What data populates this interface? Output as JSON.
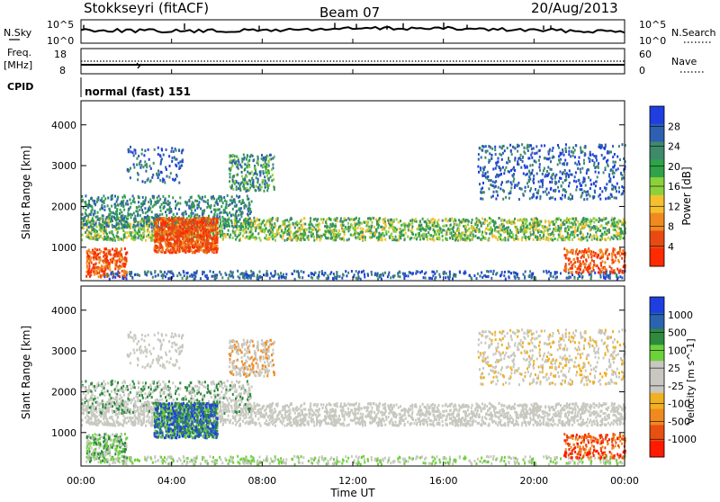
{
  "header": {
    "title": "Stokkseyri (fitACF)",
    "beam": "Beam 07",
    "date": "20/Aug/2013"
  },
  "noise_panel": {
    "left_label": "N.Sky",
    "right_label": "N.Search",
    "left_ticks": [
      "10^5",
      "10^0"
    ],
    "right_ticks": [
      "10^5",
      "10^0"
    ]
  },
  "freq_panel": {
    "label_line1": "Freq.",
    "label_line2": "[MHz]",
    "left_ticks": [
      "18",
      "8"
    ],
    "right_label": "Nave",
    "right_ticks": [
      "60",
      "0"
    ]
  },
  "cpid": {
    "label": "CPID",
    "value": "normal (fast) 151"
  },
  "chart_data": [
    {
      "type": "heatmap",
      "name": "power",
      "ylabel": "Slant Range [km]",
      "ylim": [
        180,
        4590
      ],
      "yticks": [
        1000,
        2000,
        3000,
        4000
      ],
      "colorbar_label": "Power [dB]",
      "colorbar_ticks": [
        4,
        8,
        12,
        16,
        20,
        24,
        28
      ],
      "colorbar_colors": [
        "#1f3ee0",
        "#2e5fb0",
        "#3e8a6a",
        "#2fa24a",
        "#8cd13c",
        "#f4c030",
        "#f08a1e",
        "#e84b12",
        "#ff2a00"
      ]
    },
    {
      "type": "heatmap",
      "name": "velocity",
      "ylabel": "Slant Range [km]",
      "ylim": [
        180,
        4590
      ],
      "yticks": [
        1000,
        2000,
        3000,
        4000
      ],
      "colorbar_label": "Velocity [m s^-1]",
      "colorbar_ticks": [
        1000,
        500,
        100,
        25,
        -25,
        -100,
        -500,
        -1000
      ],
      "colorbar_colors": [
        "#1f3ee0",
        "#2a63b0",
        "#2e8a3e",
        "#6dd13c",
        "#c8c8c0",
        "#c8c8c0",
        "#f0b020",
        "#f08a1e",
        "#e85012",
        "#ff1a00"
      ]
    }
  ],
  "x_axis": {
    "ticks": [
      "00:00",
      "04:00",
      "08:00",
      "12:00",
      "16:00",
      "20:00",
      "00:00"
    ],
    "label": "Time UT"
  }
}
